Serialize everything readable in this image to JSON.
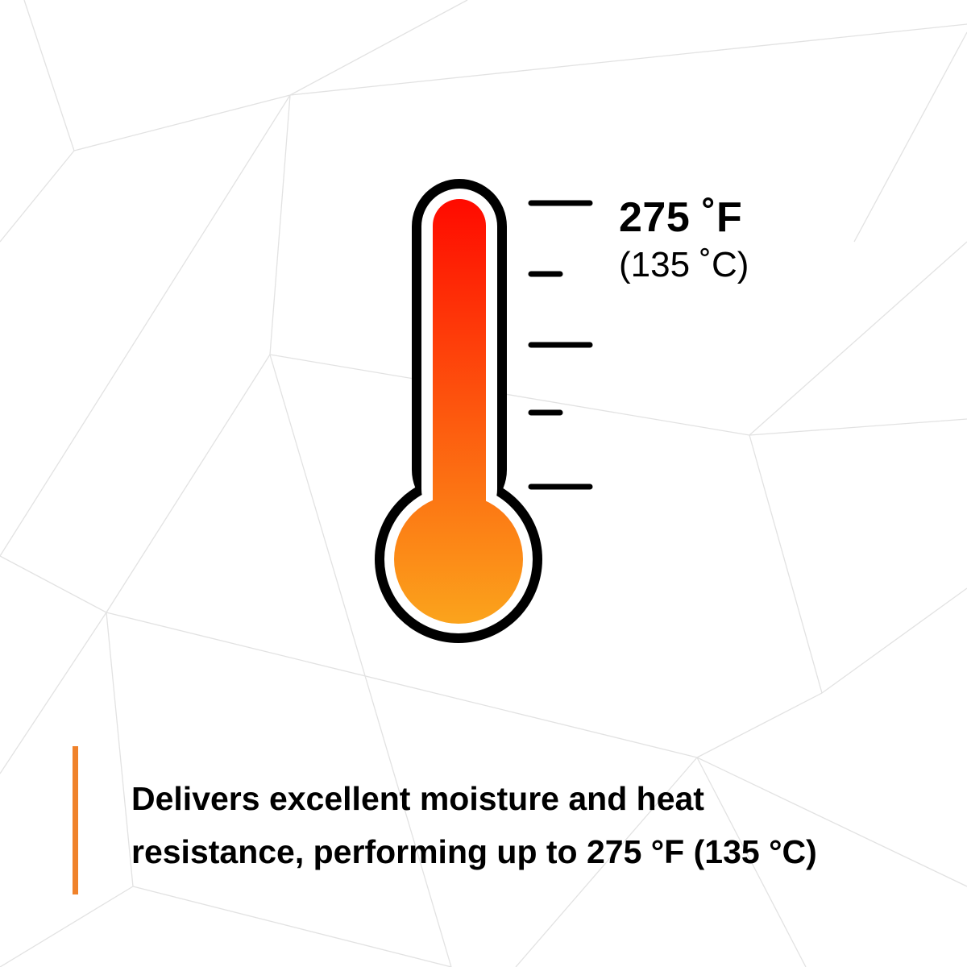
{
  "thermometer": {
    "icon": "thermometer-icon",
    "fill_level_percent": 100,
    "gradient_top_color": "#ff0a00",
    "gradient_bottom_color": "#fba41c",
    "outline_color": "#000000"
  },
  "temperature": {
    "fahrenheit": "275 ˚F",
    "celsius": "(135 ˚C)"
  },
  "caption": {
    "line1": "Delivers excellent moisture and heat",
    "line2": "resistance, performing up to 275 °F (135 °C)"
  },
  "colors": {
    "accent": "#f0822a",
    "background_lines": "#e4e4e4"
  }
}
